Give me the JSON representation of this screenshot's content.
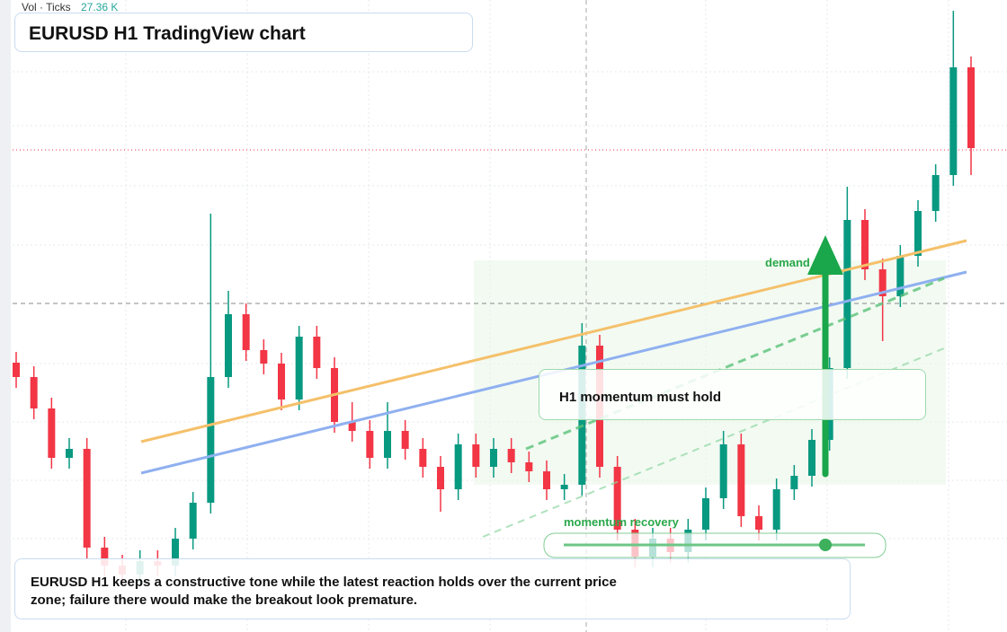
{
  "chart_data": {
    "type": "candlestick",
    "title": "EURUSD H1 TradingView chart",
    "volume_label": "Vol · Ticks",
    "volume_value": "27.36 K",
    "annotation_box": "H1 momentum must hold",
    "zone_label": "demand side",
    "slider_label": "momentum recovery",
    "caption": "EURUSD H1 keeps a constructive tone while the latest reaction holds over the current price zone; failure there would make the breakout look premature.",
    "ylim": [
      0,
      704
    ],
    "up_color": "#089981",
    "down_color": "#f23645",
    "open": [
      300,
      284,
      249,
      194,
      204,
      94,
      74,
      64,
      79,
      74,
      104,
      144,
      284,
      354,
      314,
      299,
      259,
      329,
      294,
      234,
      224,
      194,
      224,
      204,
      184,
      159,
      209,
      184,
      204,
      189,
      179,
      159,
      164,
      319,
      184,
      114,
      84,
      104,
      89,
      114,
      149,
      209,
      129,
      114,
      159,
      174,
      214,
      294,
      459,
      404,
      374,
      419,
      469,
      509,
      629
    ],
    "high": [
      312,
      296,
      261,
      216,
      216,
      106,
      86,
      91,
      91,
      116,
      156,
      466,
      380,
      366,
      326,
      311,
      341,
      341,
      306,
      256,
      236,
      256,
      236,
      216,
      196,
      221,
      221,
      216,
      216,
      201,
      191,
      176,
      344,
      331,
      196,
      126,
      116,
      116,
      126,
      161,
      224,
      221,
      141,
      171,
      186,
      226,
      306,
      496,
      471,
      416,
      431,
      481,
      521,
      692,
      641
    ],
    "low": [
      272,
      237,
      182,
      182,
      82,
      62,
      52,
      52,
      62,
      62,
      92,
      132,
      272,
      302,
      287,
      247,
      247,
      282,
      222,
      212,
      182,
      182,
      192,
      172,
      134,
      147,
      172,
      172,
      177,
      167,
      147,
      147,
      152,
      172,
      102,
      72,
      72,
      77,
      77,
      102,
      137,
      117,
      102,
      102,
      147,
      162,
      202,
      282,
      392,
      324,
      362,
      407,
      457,
      497,
      509
    ],
    "close": [
      284,
      249,
      194,
      204,
      94,
      74,
      64,
      79,
      74,
      104,
      144,
      284,
      354,
      314,
      299,
      259,
      329,
      294,
      234,
      224,
      194,
      224,
      204,
      184,
      159,
      209,
      184,
      204,
      189,
      179,
      159,
      164,
      319,
      184,
      114,
      84,
      104,
      89,
      114,
      149,
      209,
      129,
      114,
      159,
      174,
      214,
      294,
      459,
      404,
      374,
      419,
      469,
      509,
      629,
      539
    ]
  }
}
